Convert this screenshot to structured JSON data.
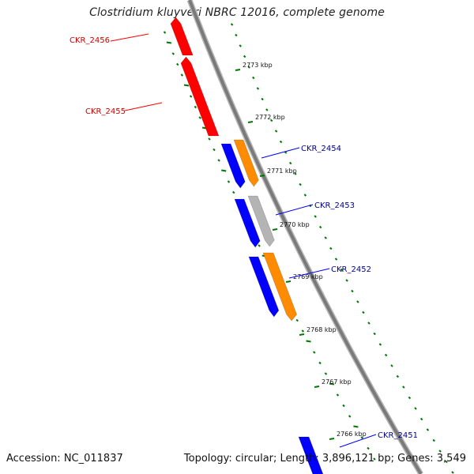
{
  "title": "Clostridium kluyveri NBRC 12016, complete genome",
  "footer": {
    "accession": "Accession: NC_011837",
    "summary": "Topology: circular; Length: 3,896,121 bp; Genes: 3,549"
  },
  "colors": {
    "forward_gene": "#ff0000",
    "reverse_gene": "#0000ff",
    "cds_feature": "#ff8c00",
    "other_feature": "#b4b4b4",
    "backbone": "#7a7a7a",
    "ticks": "#007700",
    "forward_label": "#cc0000",
    "reverse_label": "#00008b"
  },
  "scale": {
    "kbp_labels": [
      "2773 kbp",
      "2772 kbp",
      "2771 kbp",
      "2770 kbp",
      "2769 kbp",
      "2768 kbp",
      "2767 kbp",
      "2766 kbp"
    ]
  },
  "genes": [
    {
      "label": "CKR_2456",
      "strand": "forward"
    },
    {
      "label": "CKR_2455",
      "strand": "forward"
    },
    {
      "label": "CKR_2454",
      "strand": "reverse"
    },
    {
      "label": "CKR_2453",
      "strand": "reverse"
    },
    {
      "label": "CKR_2452",
      "strand": "reverse"
    },
    {
      "label": "CKR_2451",
      "strand": "reverse"
    }
  ]
}
